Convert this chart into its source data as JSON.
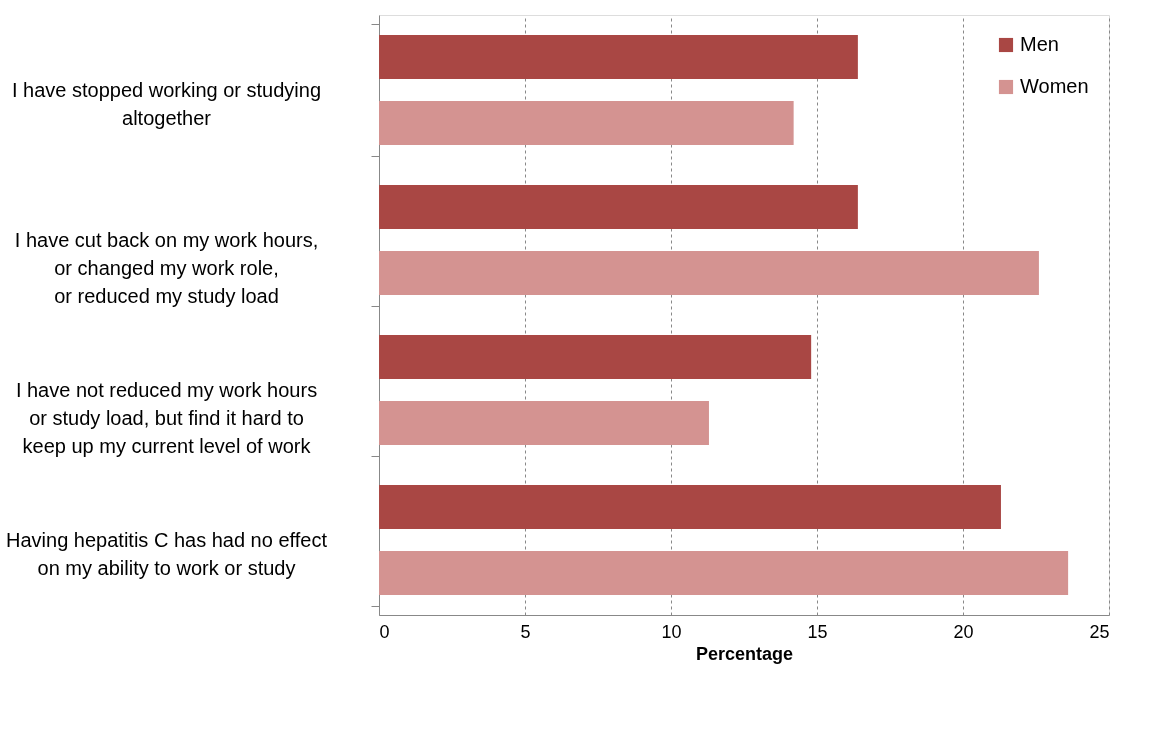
{
  "chart_data": {
    "type": "bar",
    "orientation": "horizontal",
    "xlabel": "Percentage",
    "categories": [
      "I have stopped working or studying\naltogether",
      "I have cut back on my work hours,\nor changed my work role,\nor reduced my study load",
      "I have not reduced my work hours\nor study load, but find it hard to\nkeep up my current level of work",
      "Having hepatitis C has had no effect\non my ability to work or study"
    ],
    "series": [
      {
        "name": "Men",
        "color": "#a94744",
        "values": [
          16.4,
          16.4,
          14.8,
          21.3
        ]
      },
      {
        "name": "Women",
        "color": "#d49391",
        "values": [
          14.2,
          22.6,
          11.3,
          23.6
        ]
      }
    ],
    "xlim": [
      0,
      25
    ],
    "xticks": [
      0,
      5,
      10,
      15,
      20,
      25
    ],
    "grid": "x",
    "legend": "top right"
  }
}
